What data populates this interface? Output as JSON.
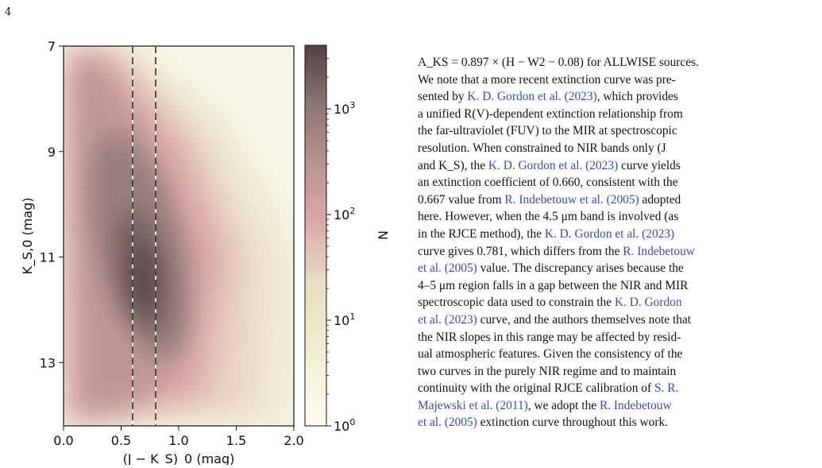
{
  "page": {
    "number": "4"
  },
  "figure": {
    "chart_data": {
      "type": "heatmap",
      "xlabel": "(J − K_S)_0 (mag)",
      "ylabel": "K_S,0 (mag)",
      "xlim": [
        0.0,
        2.0
      ],
      "ylim": [
        14.2,
        7.0
      ],
      "x_ticks": [
        "0.0",
        "0.5",
        "1.0",
        "1.5",
        "2.0"
      ],
      "y_ticks": [
        "7",
        "9",
        "11",
        "13"
      ],
      "colorbar": {
        "label": "N",
        "scale": "log",
        "range": [
          1,
          4000
        ],
        "ticks": [
          "10^0",
          "10^1",
          "10^2",
          "10^3"
        ]
      },
      "vlines": [
        0.6,
        0.8
      ],
      "density_peak": {
        "x": 0.65,
        "y": 11.3
      },
      "grid": false
    }
  },
  "text": {
    "lines": [
      "A_KS = 0.897 × (H − W2 − 0.08) for ALLWISE sources.",
      "We note that a more recent extinction curve was pre-",
      "sented by K. D. Gordon et al. (2023), which provides",
      "a unified R(V)-dependent extinction relationship from",
      "the far-ultraviolet (FUV) to the MIR at spectroscopic",
      "resolution. When constrained to NIR bands only (J",
      "and K_S), the K. D. Gordon et al. (2023) curve yields",
      "an extinction coefficient of 0.660, consistent with the",
      "0.667 value from R. Indebetouw et al. (2005) adopted",
      "here. However, when the 4.5 μm band is involved (as",
      "in the RJCE method), the K. D. Gordon et al. (2023)",
      "curve gives 0.781, which differs from the R. Indebetouw",
      "et al. (2005) value. The discrepancy arises because the",
      "4–5 μm region falls in a gap between the NIR and MIR",
      "spectroscopic data used to constrain the K. D. Gordon",
      "et al. (2023) curve, and the authors themselves note that",
      "the NIR slopes in this range may be affected by resid-",
      "ual atmospheric features. Given the consistency of the",
      "two curves in the purely NIR regime and to maintain",
      "continuity with the original RJCE calibration of S. R.",
      "Majewski et al. (2011), we adopt the R. Indebetouw",
      "et al. (2005) extinction curve throughout this work."
    ]
  },
  "colors": {
    "citation": "#3a4ca8"
  }
}
